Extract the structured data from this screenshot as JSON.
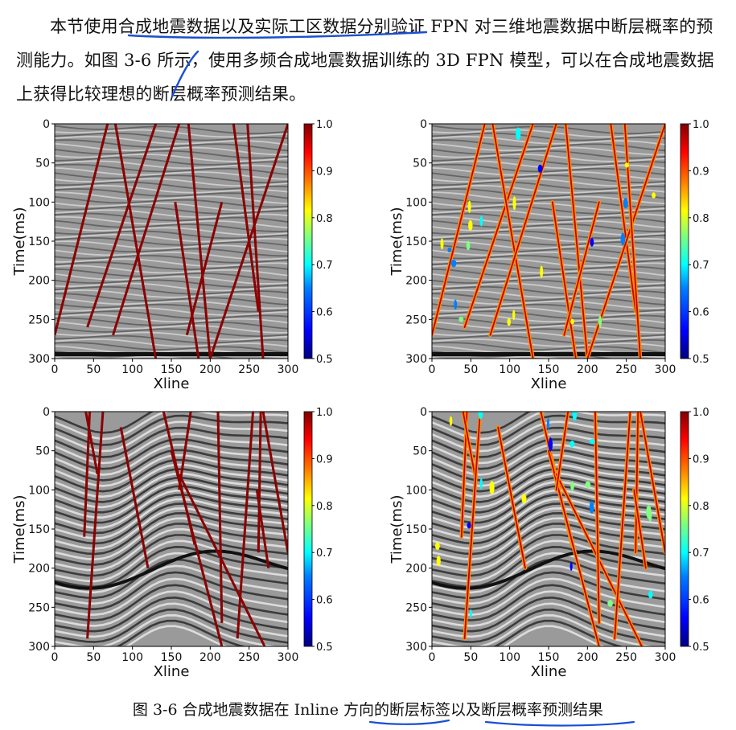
{
  "paragraph": "本节使用合成地震数据以及实际工区数据分别验证 FPN 对三维地震数据中断层概率的预测能力。如图 3-6 所示，使用多频合成地震数据训练的 3D FPN 模型，可以在合成地震数据上获得比较理想的断层概率预测结果。",
  "caption": "图 3-6  合成地震数据在 Inline 方向的断层标签以及断层概率预测结果",
  "colors": {
    "annotation_ink": "#1a4fd1",
    "fault_label": "#8b0000",
    "jet": [
      "#00007f",
      "#0000ff",
      "#007fff",
      "#00ffff",
      "#7fff7f",
      "#ffff00",
      "#ff7f00",
      "#ff0000",
      "#7f0000"
    ]
  },
  "chart_data": [
    {
      "type": "heatmap",
      "panel": "top-left",
      "content": "fault labels",
      "xlabel": "Xline",
      "ylabel": "Time(ms)",
      "xlim": [
        0,
        300
      ],
      "ylim": [
        300,
        0
      ],
      "xticks": [
        0,
        50,
        100,
        150,
        200,
        250,
        300
      ],
      "yticks": [
        0,
        50,
        100,
        150,
        200,
        250,
        300
      ],
      "colorbar": {
        "range": [
          0.5,
          1.0
        ],
        "ticks": [
          "1.0",
          "0.9",
          "0.8",
          "0.7",
          "0.6",
          "0.5"
        ]
      },
      "faults": [
        [
          [
            68,
            0
          ],
          [
            0,
            270
          ]
        ],
        [
          [
            130,
            0
          ],
          [
            42,
            260
          ]
        ],
        [
          [
            78,
            0
          ],
          [
            130,
            300
          ]
        ],
        [
          [
            160,
            0
          ],
          [
            75,
            270
          ]
        ],
        [
          [
            172,
            0
          ],
          [
            200,
            300
          ]
        ],
        [
          [
            155,
            100
          ],
          [
            185,
            300
          ]
        ],
        [
          [
            230,
            0
          ],
          [
            262,
            240
          ]
        ],
        [
          [
            300,
            0
          ],
          [
            200,
            300
          ]
        ],
        [
          [
            248,
            0
          ],
          [
            268,
            300
          ]
        ],
        [
          [
            215,
            100
          ],
          [
            170,
            270
          ]
        ]
      ]
    },
    {
      "type": "heatmap",
      "panel": "top-right",
      "content": "fault probability prediction",
      "xlabel": "Xline",
      "ylabel": "Time(ms)",
      "xlim": [
        0,
        300
      ],
      "ylim": [
        300,
        0
      ],
      "xticks": [
        0,
        50,
        100,
        150,
        200,
        250,
        300
      ],
      "yticks": [
        0,
        50,
        100,
        150,
        200,
        250,
        300
      ],
      "colorbar": {
        "range": [
          0.5,
          1.0
        ],
        "ticks": [
          "1.0",
          "0.9",
          "0.8",
          "0.7",
          "0.6",
          "0.5"
        ]
      },
      "faults": [
        [
          [
            68,
            0
          ],
          [
            0,
            270
          ]
        ],
        [
          [
            130,
            0
          ],
          [
            42,
            260
          ]
        ],
        [
          [
            78,
            0
          ],
          [
            130,
            300
          ]
        ],
        [
          [
            160,
            0
          ],
          [
            75,
            270
          ]
        ],
        [
          [
            172,
            0
          ],
          [
            200,
            300
          ]
        ],
        [
          [
            155,
            100
          ],
          [
            185,
            300
          ]
        ],
        [
          [
            230,
            0
          ],
          [
            262,
            240
          ]
        ],
        [
          [
            300,
            0
          ],
          [
            200,
            300
          ]
        ],
        [
          [
            248,
            0
          ],
          [
            268,
            300
          ]
        ],
        [
          [
            215,
            100
          ],
          [
            170,
            270
          ]
        ]
      ]
    },
    {
      "type": "heatmap",
      "panel": "bottom-left",
      "content": "fault labels",
      "xlabel": "Xline",
      "ylabel": "Time(ms)",
      "xlim": [
        0,
        300
      ],
      "ylim": [
        300,
        0
      ],
      "xticks": [
        0,
        50,
        100,
        150,
        200,
        250,
        300
      ],
      "yticks": [
        0,
        50,
        100,
        150,
        200,
        250,
        300
      ],
      "colorbar": {
        "range": [
          0.5,
          1.0
        ],
        "ticks": [
          "1.0",
          "0.9",
          "0.8",
          "0.7",
          "0.6",
          "0.5"
        ]
      },
      "faults": [
        [
          [
            45,
            0
          ],
          [
            38,
            160
          ]
        ],
        [
          [
            40,
            0
          ],
          [
            55,
            80
          ]
        ],
        [
          [
            62,
            0
          ],
          [
            42,
            290
          ]
        ],
        [
          [
            85,
            20
          ],
          [
            120,
            200
          ]
        ],
        [
          [
            140,
            0
          ],
          [
            180,
            170
          ]
        ],
        [
          [
            150,
            50
          ],
          [
            215,
            300
          ]
        ],
        [
          [
            160,
            80
          ],
          [
            270,
            300
          ]
        ],
        [
          [
            175,
            0
          ],
          [
            160,
            100
          ]
        ],
        [
          [
            210,
            0
          ],
          [
            215,
            270
          ]
        ],
        [
          [
            255,
            0
          ],
          [
            235,
            290
          ]
        ],
        [
          [
            265,
            0
          ],
          [
            262,
            180
          ]
        ],
        [
          [
            268,
            0
          ],
          [
            300,
            180
          ]
        ],
        [
          [
            260,
            100
          ],
          [
            275,
            200
          ]
        ]
      ]
    },
    {
      "type": "heatmap",
      "panel": "bottom-right",
      "content": "fault probability prediction",
      "xlabel": "Xline",
      "ylabel": "Time(ms)",
      "xlim": [
        0,
        300
      ],
      "ylim": [
        300,
        0
      ],
      "xticks": [
        0,
        50,
        100,
        150,
        200,
        250,
        300
      ],
      "yticks": [
        0,
        50,
        100,
        150,
        200,
        250,
        300
      ],
      "colorbar": {
        "range": [
          0.5,
          1.0
        ],
        "ticks": [
          "1.0",
          "0.9",
          "0.8",
          "0.7",
          "0.6",
          "0.5"
        ]
      },
      "faults": [
        [
          [
            45,
            0
          ],
          [
            38,
            160
          ]
        ],
        [
          [
            40,
            0
          ],
          [
            55,
            80
          ]
        ],
        [
          [
            62,
            0
          ],
          [
            42,
            290
          ]
        ],
        [
          [
            85,
            20
          ],
          [
            120,
            200
          ]
        ],
        [
          [
            140,
            0
          ],
          [
            180,
            170
          ]
        ],
        [
          [
            150,
            50
          ],
          [
            215,
            300
          ]
        ],
        [
          [
            160,
            80
          ],
          [
            270,
            300
          ]
        ],
        [
          [
            175,
            0
          ],
          [
            160,
            100
          ]
        ],
        [
          [
            210,
            0
          ],
          [
            215,
            270
          ]
        ],
        [
          [
            255,
            0
          ],
          [
            235,
            290
          ]
        ],
        [
          [
            265,
            0
          ],
          [
            262,
            180
          ]
        ],
        [
          [
            268,
            0
          ],
          [
            300,
            180
          ]
        ],
        [
          [
            260,
            100
          ],
          [
            275,
            200
          ]
        ]
      ]
    }
  ]
}
